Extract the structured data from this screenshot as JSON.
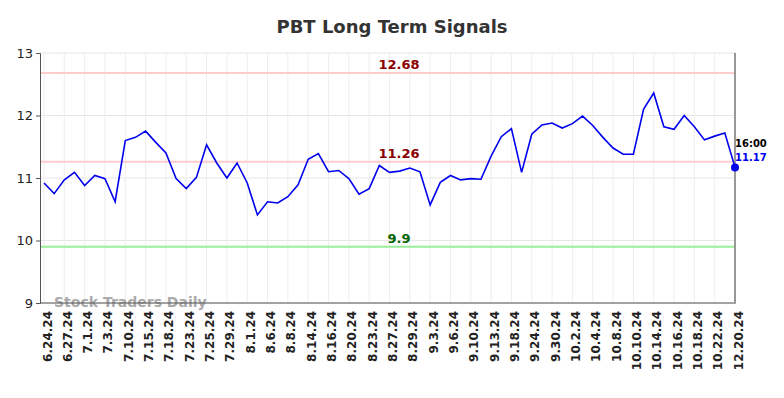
{
  "chart_data": {
    "type": "line",
    "title": "PBT Long Term Signals",
    "categories": [
      "6.24.24",
      null,
      "6.27.24",
      null,
      "7.1.24",
      null,
      "7.3.24",
      null,
      "7.10.24",
      null,
      "7.15.24",
      null,
      "7.18.24",
      null,
      "7.23.24",
      null,
      "7.25.24",
      null,
      "7.29.24",
      null,
      "8.1.24",
      null,
      "8.6.24",
      null,
      "8.8.24",
      null,
      "8.14.24",
      null,
      "8.16.24",
      null,
      "8.20.24",
      null,
      "8.23.24",
      null,
      "8.27.24",
      null,
      "8.29.24",
      null,
      "9.3.24",
      null,
      "9.6.24",
      null,
      "9.10.24",
      null,
      "9.13.24",
      null,
      "9.18.24",
      null,
      "9.24.24",
      null,
      "9.30.24",
      null,
      "10.2.24",
      null,
      "10.4.24",
      null,
      "10.8.24",
      null,
      "10.10.24",
      null,
      "10.14.24",
      null,
      "10.16.24",
      null,
      "10.18.24",
      null,
      "10.22.24",
      null,
      "12.20.24"
    ],
    "values": [
      10.92,
      10.75,
      10.97,
      11.09,
      10.88,
      11.04,
      10.99,
      10.62,
      11.6,
      11.65,
      11.75,
      11.57,
      11.4,
      10.99,
      10.83,
      11.01,
      11.53,
      11.24,
      11.0,
      11.24,
      10.92,
      10.41,
      10.62,
      10.6,
      10.7,
      10.89,
      11.3,
      11.39,
      11.1,
      11.12,
      10.99,
      10.74,
      10.83,
      11.2,
      11.09,
      11.11,
      11.16,
      11.1,
      10.57,
      10.93,
      11.04,
      10.97,
      10.99,
      10.98,
      11.35,
      11.66,
      11.79,
      11.09,
      11.7,
      11.85,
      11.88,
      11.8,
      11.87,
      11.99,
      11.84,
      11.65,
      11.48,
      11.38,
      11.38,
      12.1,
      12.36,
      11.82,
      11.78,
      12.0,
      11.82,
      11.61,
      11.67,
      11.72,
      11.17
    ],
    "color": "#0000ee",
    "ylim": [
      9,
      13
    ],
    "yticks": [
      9,
      10,
      11,
      12,
      13
    ],
    "grid": true,
    "reference_lines": [
      {
        "value": 12.68,
        "label": "12.68",
        "color": "#ffcccc",
        "label_color": "#8b0000"
      },
      {
        "value": 11.26,
        "label": "11.26",
        "color": "#ffcccc",
        "label_color": "#8b0000"
      },
      {
        "value": 9.9,
        "label": "9.9",
        "color": "#99ee99",
        "label_color": "#006400"
      }
    ],
    "annotations": [
      "16:00"
    ],
    "watermark": "Stock Traders Daily"
  }
}
